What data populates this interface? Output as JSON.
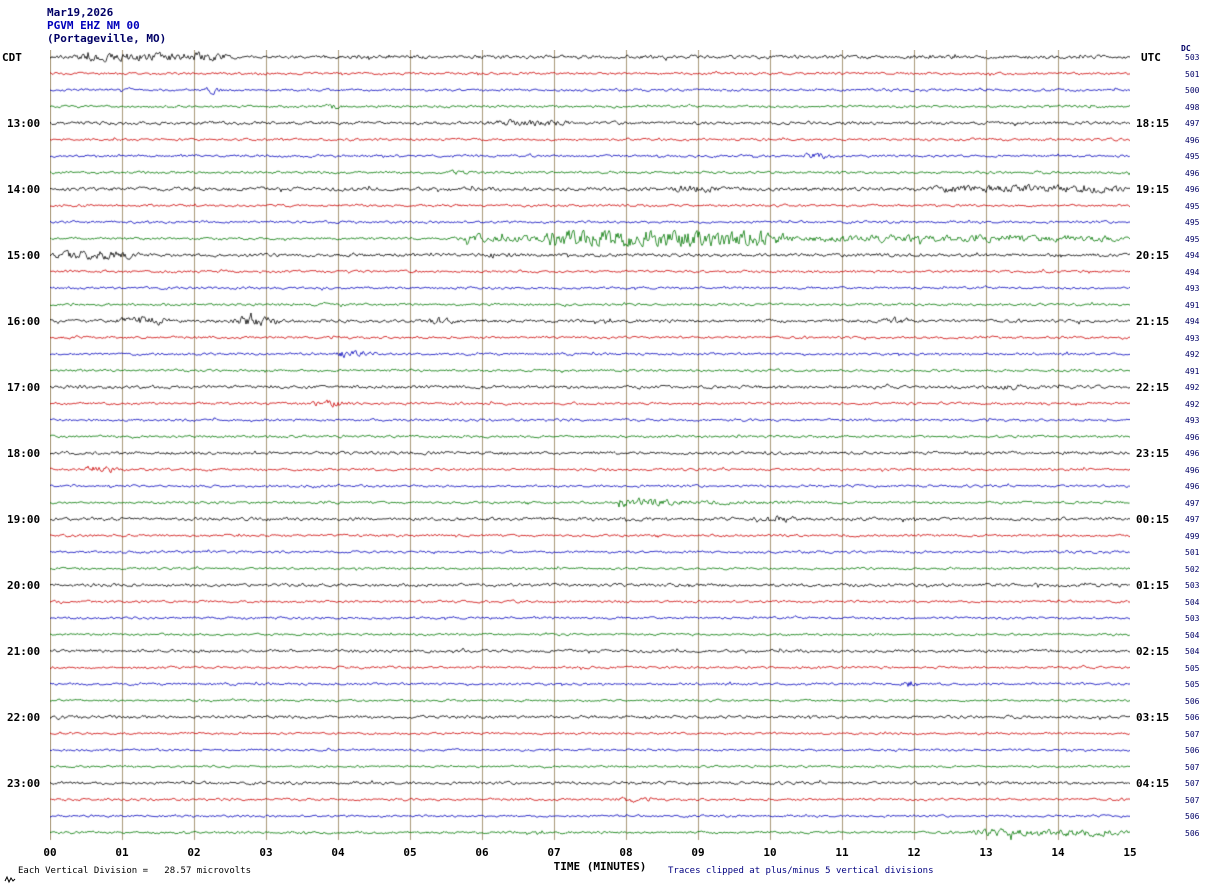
{
  "title": {
    "date": "Mar19,2026",
    "station": "PGVM EHZ NM 00",
    "location": "(Portageville, MO)"
  },
  "axis": {
    "left_tz": "CDT",
    "right_tz": "UTC",
    "dc_label": "DC",
    "xlabel": "TIME (MINUTES)",
    "x_ticks": [
      "00",
      "01",
      "02",
      "03",
      "04",
      "05",
      "06",
      "07",
      "08",
      "09",
      "10",
      "11",
      "12",
      "13",
      "14",
      "15"
    ]
  },
  "footer": {
    "left": "Each Vertical Division =   28.57 microvolts",
    "right": "Traces clipped at plus/minus 5 vertical divisions"
  },
  "colors": {
    "black": "#000000",
    "red": "#cc0000",
    "blue": "#0000bb",
    "green": "#007700",
    "grid": "#a89878",
    "title": "#000080"
  },
  "chart_data": {
    "type": "line",
    "title": "Helicorder seismogram PGVM EHZ NM 00 (Portageville, MO), Mar 19 2026",
    "xlabel": "TIME (MINUTES)",
    "x_range_minutes": [
      0,
      15
    ],
    "minutes_per_line": 15,
    "trace_clip_divisions": 5,
    "microvolts_per_division": 28.57,
    "color_cycle": [
      "black",
      "red",
      "blue",
      "green"
    ],
    "legend_position": "none",
    "grid": "vertical-minute-lines",
    "rows": [
      {
        "color": "black",
        "cdt": null,
        "utc": null,
        "dc": 503,
        "amp": 1.4,
        "events": [
          [
            0.3,
            2.6,
            2.0,
            "burst"
          ]
        ]
      },
      {
        "color": "red",
        "cdt": null,
        "utc": null,
        "dc": 501,
        "amp": 1.0,
        "events": []
      },
      {
        "color": "blue",
        "cdt": null,
        "utc": null,
        "dc": 500,
        "amp": 1.0,
        "events": [
          [
            2.1,
            2.4,
            2.5,
            "spike"
          ]
        ]
      },
      {
        "color": "green",
        "cdt": null,
        "utc": null,
        "dc": 498,
        "amp": 1.0,
        "events": [
          [
            3.8,
            4.1,
            2.2,
            "spike"
          ]
        ]
      },
      {
        "color": "black",
        "cdt": "13:00",
        "utc": "18:15",
        "dc": 497,
        "amp": 1.3,
        "events": [
          [
            6.0,
            7.3,
            1.3,
            "burst"
          ]
        ]
      },
      {
        "color": "red",
        "cdt": null,
        "utc": null,
        "dc": 496,
        "amp": 1.0,
        "events": []
      },
      {
        "color": "blue",
        "cdt": null,
        "utc": null,
        "dc": 495,
        "amp": 1.0,
        "events": [
          [
            10.4,
            11.0,
            1.5,
            "burst"
          ]
        ]
      },
      {
        "color": "green",
        "cdt": null,
        "utc": null,
        "dc": 496,
        "amp": 1.0,
        "events": [
          [
            5.5,
            5.9,
            1.5,
            "burst"
          ]
        ]
      },
      {
        "color": "black",
        "cdt": "14:00",
        "utc": "19:15",
        "dc": 496,
        "amp": 1.5,
        "events": [
          [
            8.6,
            9.4,
            1.5,
            "burst"
          ],
          [
            12.2,
            15,
            1.6,
            "burst"
          ]
        ]
      },
      {
        "color": "red",
        "cdt": null,
        "utc": null,
        "dc": 495,
        "amp": 1.0,
        "events": []
      },
      {
        "color": "blue",
        "cdt": null,
        "utc": null,
        "dc": 495,
        "amp": 1.0,
        "events": []
      },
      {
        "color": "green",
        "cdt": null,
        "utc": null,
        "dc": 495,
        "amp": 1.0,
        "events": [
          [
            5.6,
            15,
            1.8,
            "burst"
          ],
          [
            6.8,
            10.3,
            4.2,
            "burst"
          ]
        ]
      },
      {
        "color": "black",
        "cdt": "15:00",
        "utc": "20:15",
        "dc": 494,
        "amp": 1.3,
        "events": [
          [
            0,
            1.3,
            2.2,
            "burst"
          ],
          [
            6.0,
            6.5,
            1.2,
            "burst"
          ]
        ]
      },
      {
        "color": "red",
        "cdt": null,
        "utc": null,
        "dc": 494,
        "amp": 1.0,
        "events": []
      },
      {
        "color": "blue",
        "cdt": null,
        "utc": null,
        "dc": 493,
        "amp": 1.0,
        "events": []
      },
      {
        "color": "green",
        "cdt": null,
        "utc": null,
        "dc": 491,
        "amp": 1.0,
        "events": []
      },
      {
        "color": "black",
        "cdt": "16:00",
        "utc": "21:15",
        "dc": 494,
        "amp": 1.3,
        "events": [
          [
            0.9,
            1.7,
            2.6,
            "burst"
          ],
          [
            2.5,
            3.3,
            2.6,
            "burst"
          ],
          [
            5.2,
            5.7,
            1.8,
            "burst"
          ],
          [
            11.5,
            12.1,
            1.5,
            "burst"
          ]
        ]
      },
      {
        "color": "red",
        "cdt": null,
        "utc": null,
        "dc": 493,
        "amp": 1.0,
        "events": []
      },
      {
        "color": "blue",
        "cdt": null,
        "utc": null,
        "dc": 492,
        "amp": 1.0,
        "events": [
          [
            3.9,
            4.6,
            2.0,
            "burst"
          ]
        ]
      },
      {
        "color": "green",
        "cdt": null,
        "utc": null,
        "dc": 491,
        "amp": 1.0,
        "events": []
      },
      {
        "color": "black",
        "cdt": "17:00",
        "utc": "22:15",
        "dc": 492,
        "amp": 1.3,
        "events": [
          [
            13.1,
            13.6,
            1.4,
            "burst"
          ]
        ]
      },
      {
        "color": "red",
        "cdt": null,
        "utc": null,
        "dc": 492,
        "amp": 1.0,
        "events": [
          [
            3.6,
            4.2,
            1.8,
            "burst"
          ]
        ]
      },
      {
        "color": "blue",
        "cdt": null,
        "utc": null,
        "dc": 493,
        "amp": 1.0,
        "events": []
      },
      {
        "color": "green",
        "cdt": null,
        "utc": null,
        "dc": 496,
        "amp": 1.0,
        "events": []
      },
      {
        "color": "black",
        "cdt": "18:00",
        "utc": "23:15",
        "dc": 496,
        "amp": 1.3,
        "events": []
      },
      {
        "color": "red",
        "cdt": null,
        "utc": null,
        "dc": 496,
        "amp": 1.0,
        "events": [
          [
            0.4,
            1.1,
            2.0,
            "burst"
          ]
        ]
      },
      {
        "color": "blue",
        "cdt": null,
        "utc": null,
        "dc": 496,
        "amp": 1.0,
        "events": []
      },
      {
        "color": "green",
        "cdt": null,
        "utc": null,
        "dc": 497,
        "amp": 1.0,
        "events": [
          [
            7.9,
            10.8,
            3.5,
            "decay"
          ]
        ]
      },
      {
        "color": "black",
        "cdt": "19:00",
        "utc": "00:15",
        "dc": 497,
        "amp": 1.3,
        "events": [
          [
            9.7,
            10.5,
            1.5,
            "burst"
          ]
        ]
      },
      {
        "color": "red",
        "cdt": null,
        "utc": null,
        "dc": 499,
        "amp": 1.0,
        "events": []
      },
      {
        "color": "blue",
        "cdt": null,
        "utc": null,
        "dc": 501,
        "amp": 1.0,
        "events": []
      },
      {
        "color": "green",
        "cdt": null,
        "utc": null,
        "dc": 502,
        "amp": 0.9,
        "events": []
      },
      {
        "color": "black",
        "cdt": "20:00",
        "utc": "01:15",
        "dc": 503,
        "amp": 1.25,
        "events": []
      },
      {
        "color": "red",
        "cdt": null,
        "utc": null,
        "dc": 504,
        "amp": 1.0,
        "events": []
      },
      {
        "color": "blue",
        "cdt": null,
        "utc": null,
        "dc": 503,
        "amp": 1.0,
        "events": []
      },
      {
        "color": "green",
        "cdt": null,
        "utc": null,
        "dc": 504,
        "amp": 0.9,
        "events": []
      },
      {
        "color": "black",
        "cdt": "21:00",
        "utc": "02:15",
        "dc": 504,
        "amp": 1.2,
        "events": []
      },
      {
        "color": "red",
        "cdt": null,
        "utc": null,
        "dc": 505,
        "amp": 1.0,
        "events": []
      },
      {
        "color": "blue",
        "cdt": null,
        "utc": null,
        "dc": 505,
        "amp": 1.0,
        "events": [
          [
            11.8,
            12.1,
            2.4,
            "spike"
          ]
        ]
      },
      {
        "color": "green",
        "cdt": null,
        "utc": null,
        "dc": 506,
        "amp": 0.9,
        "events": []
      },
      {
        "color": "black",
        "cdt": "22:00",
        "utc": "03:15",
        "dc": 506,
        "amp": 1.2,
        "events": []
      },
      {
        "color": "red",
        "cdt": null,
        "utc": null,
        "dc": 507,
        "amp": 0.9,
        "events": []
      },
      {
        "color": "blue",
        "cdt": null,
        "utc": null,
        "dc": 506,
        "amp": 0.9,
        "events": []
      },
      {
        "color": "green",
        "cdt": null,
        "utc": null,
        "dc": 507,
        "amp": 0.9,
        "events": []
      },
      {
        "color": "black",
        "cdt": "23:00",
        "utc": "04:15",
        "dc": 507,
        "amp": 1.2,
        "events": []
      },
      {
        "color": "red",
        "cdt": null,
        "utc": null,
        "dc": 507,
        "amp": 1.0,
        "events": [
          [
            7.8,
            8.4,
            1.3,
            "burst"
          ]
        ]
      },
      {
        "color": "blue",
        "cdt": null,
        "utc": null,
        "dc": 506,
        "amp": 0.9,
        "events": []
      },
      {
        "color": "green",
        "cdt": null,
        "utc": null,
        "dc": 506,
        "amp": 1.0,
        "events": [
          [
            12.7,
            15,
            2.0,
            "burst"
          ]
        ]
      }
    ]
  }
}
